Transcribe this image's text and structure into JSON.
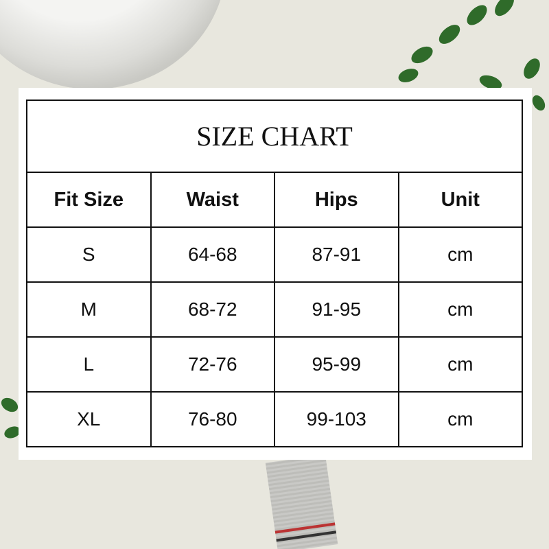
{
  "title": "SIZE CHART",
  "headers": [
    "Fit Size",
    "Waist",
    "Hips",
    "Unit"
  ],
  "rows": [
    [
      "S",
      "64-68",
      "87-91",
      "cm"
    ],
    [
      "M",
      "68-72",
      "91-95",
      "cm"
    ],
    [
      "L",
      "72-76",
      "95-99",
      "cm"
    ],
    [
      "XL",
      "76-80",
      "99-103",
      "cm"
    ]
  ]
}
